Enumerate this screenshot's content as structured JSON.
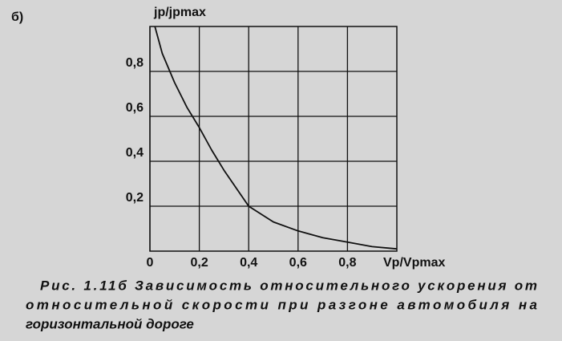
{
  "chart_data": {
    "type": "line",
    "panel_label": "б)",
    "y_label": "jp/jpmax",
    "x_label": "Vp/Vpmax",
    "x": [
      0.02,
      0.05,
      0.1,
      0.15,
      0.2,
      0.25,
      0.3,
      0.4,
      0.5,
      0.6,
      0.7,
      0.8,
      0.9,
      1.0
    ],
    "series": [
      {
        "color": "#111111",
        "values": [
          1.0,
          0.88,
          0.75,
          0.64,
          0.55,
          0.45,
          0.36,
          0.2,
          0.13,
          0.09,
          0.06,
          0.04,
          0.02,
          0.01
        ]
      }
    ],
    "xlim": [
      0,
      1
    ],
    "ylim": [
      0,
      1
    ],
    "xticks": [
      0,
      {
        "value": 0.2,
        "label": "0,2"
      },
      {
        "value": 0.4,
        "label": "0,4"
      },
      {
        "value": 0.6,
        "label": "0,6"
      },
      {
        "value": 0.8,
        "label": "0,8"
      }
    ],
    "yticks": [
      {
        "value": 0.2,
        "label": "0,2"
      },
      {
        "value": 0.4,
        "label": "0,4"
      },
      {
        "value": 0.6,
        "label": "0,6"
      },
      {
        "value": 0.8,
        "label": "0,8"
      }
    ],
    "grid": true,
    "caption": [
      "Рис. 1.11б Зависимость относительного ускорения от",
      "относительной скорости при разгоне автомобиля на",
      "горизонтальной дороге"
    ]
  }
}
